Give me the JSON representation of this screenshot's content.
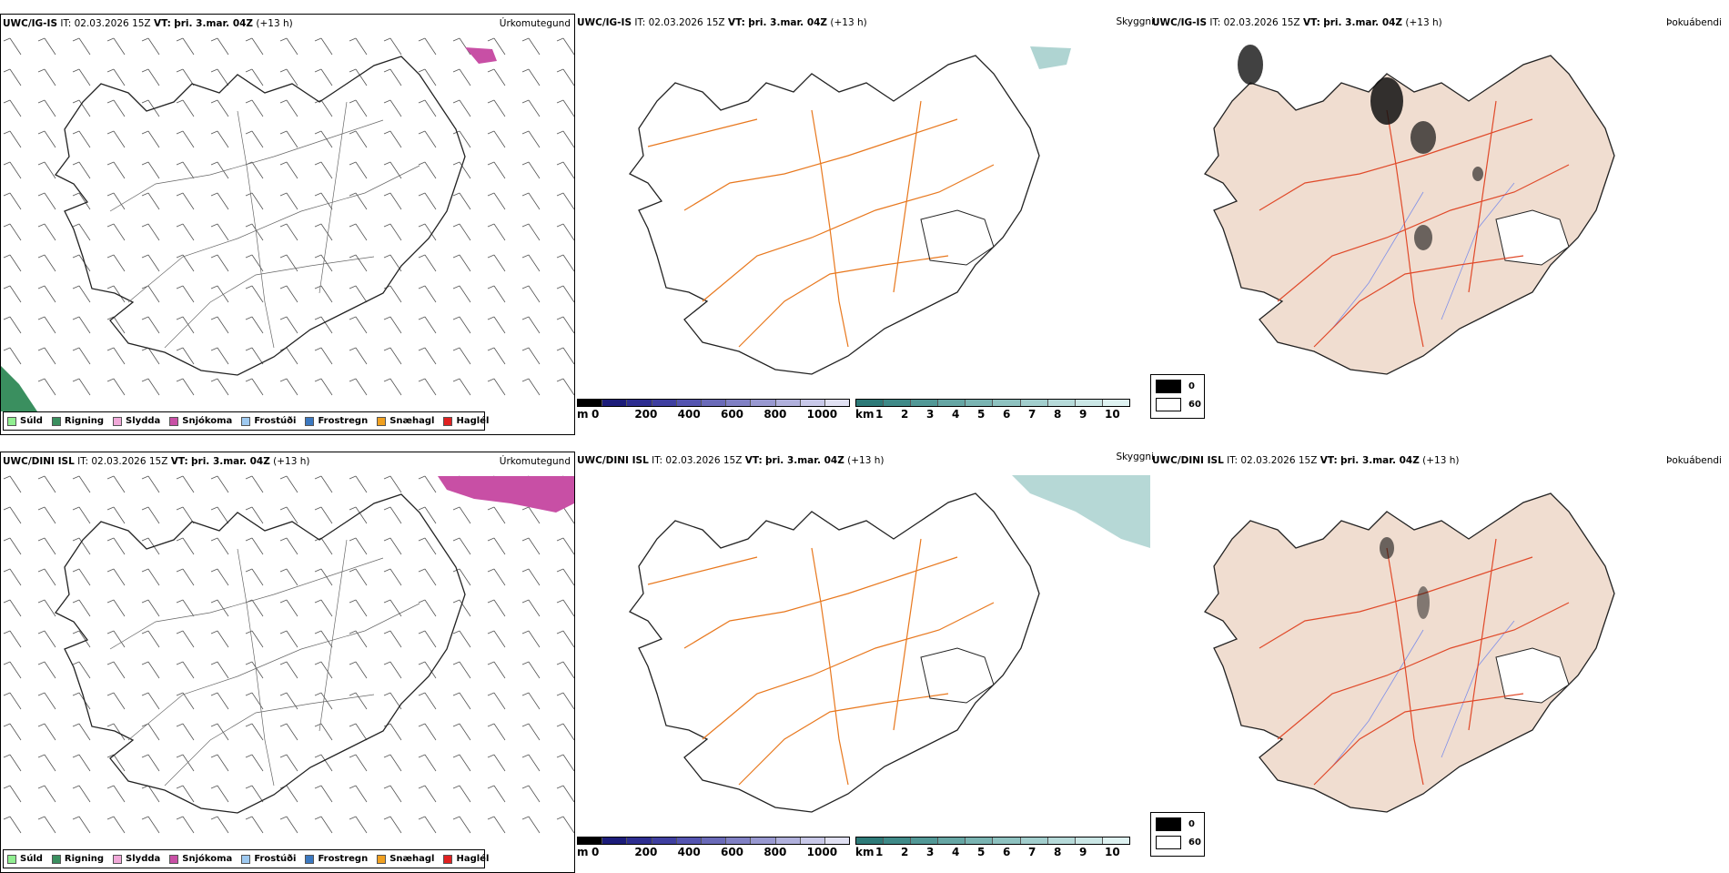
{
  "rows": [
    {
      "model": "UWC/IG-IS",
      "it_label": "IT:",
      "it_value": "02.03.2026 15Z",
      "vt_label": "VT:",
      "vt_value": "þri. 3.mar. 04Z",
      "lead": "(+13 h)"
    },
    {
      "model": "UWC/DINI ISL",
      "it_label": "IT:",
      "it_value": "02.03.2026 15Z",
      "vt_label": "VT:",
      "vt_value": "þri. 3.mar. 04Z",
      "lead": "(+13 h)"
    }
  ],
  "panel_types": {
    "precip": "Úrkomutegund",
    "visibility": "Skyggni",
    "fog": "Þokuábendi"
  },
  "precip_legend": [
    {
      "label": "Súld",
      "color": "#90ee90"
    },
    {
      "label": "Rigning",
      "color": "#3a8f5f"
    },
    {
      "label": "Slydda",
      "color": "#f0a8d8"
    },
    {
      "label": "Snjókoma",
      "color": "#c84fa5"
    },
    {
      "label": "Frostúði",
      "color": "#9ec9f0"
    },
    {
      "label": "Frostregn",
      "color": "#3b78c0"
    },
    {
      "label": "Snæhagl",
      "color": "#f0a020"
    },
    {
      "label": "Haglél",
      "color": "#e02020"
    }
  ],
  "height_scale": {
    "unit": "m",
    "ticks": [
      "0",
      "200",
      "400",
      "600",
      "800",
      "1000"
    ],
    "colors": [
      "#000000",
      "#1c1c7a",
      "#2d2d90",
      "#3f3fa0",
      "#5454b0",
      "#6a6ab8",
      "#8080c4",
      "#9898d0",
      "#b0b0dc",
      "#c8c8e8",
      "#e0e0f2"
    ]
  },
  "visibility_scale": {
    "unit": "km",
    "ticks": [
      "1",
      "2",
      "3",
      "4",
      "5",
      "6",
      "7",
      "8",
      "9",
      "10"
    ],
    "colors": [
      "#2d7a78",
      "#3f8a88",
      "#529896",
      "#66a6a4",
      "#7ab4b2",
      "#8ec2c0",
      "#a2cecd",
      "#b6dad9",
      "#cae6e5",
      "#def2f1"
    ]
  },
  "fog_scale": {
    "values": [
      "0",
      "60"
    ],
    "colors": [
      "#000000",
      "#ffffff"
    ]
  },
  "colors": {
    "roads": "#e8781e",
    "fog_land": "#f0ddd0",
    "fog_roads": "#e04a2a",
    "rivers": "#7f8fe8",
    "snow": "#c84fa5",
    "rain": "#3a8f5f",
    "vis_low": "#7ab8b4"
  }
}
